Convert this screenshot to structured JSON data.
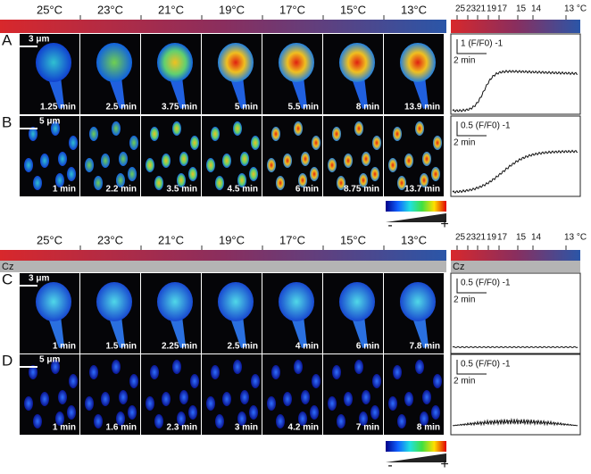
{
  "sections": [
    {
      "temperatures": [
        "25°C",
        "23°C",
        "21°C",
        "19°C",
        "17°C",
        "15°C",
        "13°C"
      ],
      "trace_ticks": [
        "25",
        "23",
        "21",
        "19",
        "17",
        "15",
        "14",
        "13 °C"
      ],
      "panels": [
        {
          "label": "A",
          "scale_bar": "3 μm",
          "times": [
            "1.25 min",
            "2.5 min",
            "3.75 min",
            "5 min",
            "5.5 min",
            "8 min",
            "13.9 min"
          ],
          "trace_y_label": "1 (F/F0) -1",
          "trace_x_label": "2 min"
        },
        {
          "label": "B",
          "scale_bar": "5 μm",
          "times": [
            "1 min",
            "2.2 min",
            "3.5 min",
            "4.5 min",
            "6 min",
            "8.75 min",
            "13.7 min"
          ],
          "trace_y_label": "0.5 (F/F0) -1",
          "trace_x_label": "2 min"
        }
      ],
      "colorbar": {
        "min": "-",
        "max": "+"
      }
    },
    {
      "temperatures": [
        "25°C",
        "23°C",
        "21°C",
        "19°C",
        "17°C",
        "15°C",
        "13°C"
      ],
      "trace_ticks": [
        "25",
        "23",
        "21",
        "19",
        "17",
        "15",
        "14",
        "13 °C"
      ],
      "drug": "Cz",
      "panels": [
        {
          "label": "C",
          "scale_bar": "3 μm",
          "times": [
            "1 min",
            "1.5 min",
            "2.25 min",
            "2.5 min",
            "4 min",
            "6 min",
            "7.8 min"
          ],
          "trace_y_label": "0.5 (F/F0) -1",
          "trace_x_label": "2 min"
        },
        {
          "label": "D",
          "scale_bar": "5 μm",
          "times": [
            "1 min",
            "1.6 min",
            "2.3 min",
            "3 min",
            "4.2 min",
            "7 min",
            "8 min"
          ],
          "trace_y_label": "0.5 (F/F0) -1",
          "trace_x_label": "2 min"
        }
      ],
      "colorbar": {
        "min": "-",
        "max": "+"
      }
    }
  ]
}
